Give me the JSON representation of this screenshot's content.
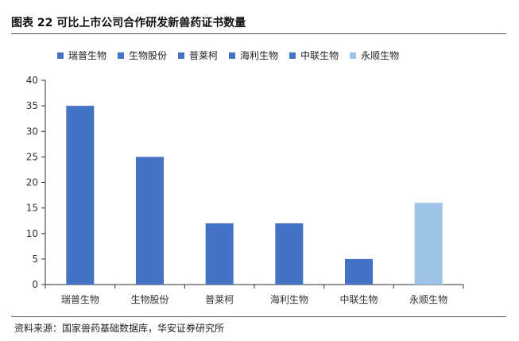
{
  "figure": {
    "title": "图表 22  可比上市公司合作研发新兽药证书数量",
    "source": "资料来源：国家兽药基础数据库，华安证券研究所"
  },
  "colors": {
    "bar_primary": "#4472C4",
    "bar_highlight": "#9DC3E6",
    "axis": "#333333"
  },
  "chart_data": {
    "type": "bar",
    "categories": [
      "瑞普生物",
      "生物股份",
      "普莱柯",
      "海利生物",
      "中联生物",
      "永顺生物"
    ],
    "values": [
      35,
      25,
      12,
      12,
      5,
      16
    ],
    "series_colors": [
      "#4472C4",
      "#4472C4",
      "#4472C4",
      "#4472C4",
      "#4472C4",
      "#9DC3E6"
    ],
    "ylim": [
      0,
      40
    ],
    "yticks": [
      0,
      5,
      10,
      15,
      20,
      25,
      30,
      35,
      40
    ],
    "legend": {
      "placement": "top",
      "entries": [
        "瑞普生物",
        "生物股份",
        "普莱柯",
        "海利生物",
        "中联生物",
        "永顺生物"
      ]
    },
    "grid": false
  }
}
